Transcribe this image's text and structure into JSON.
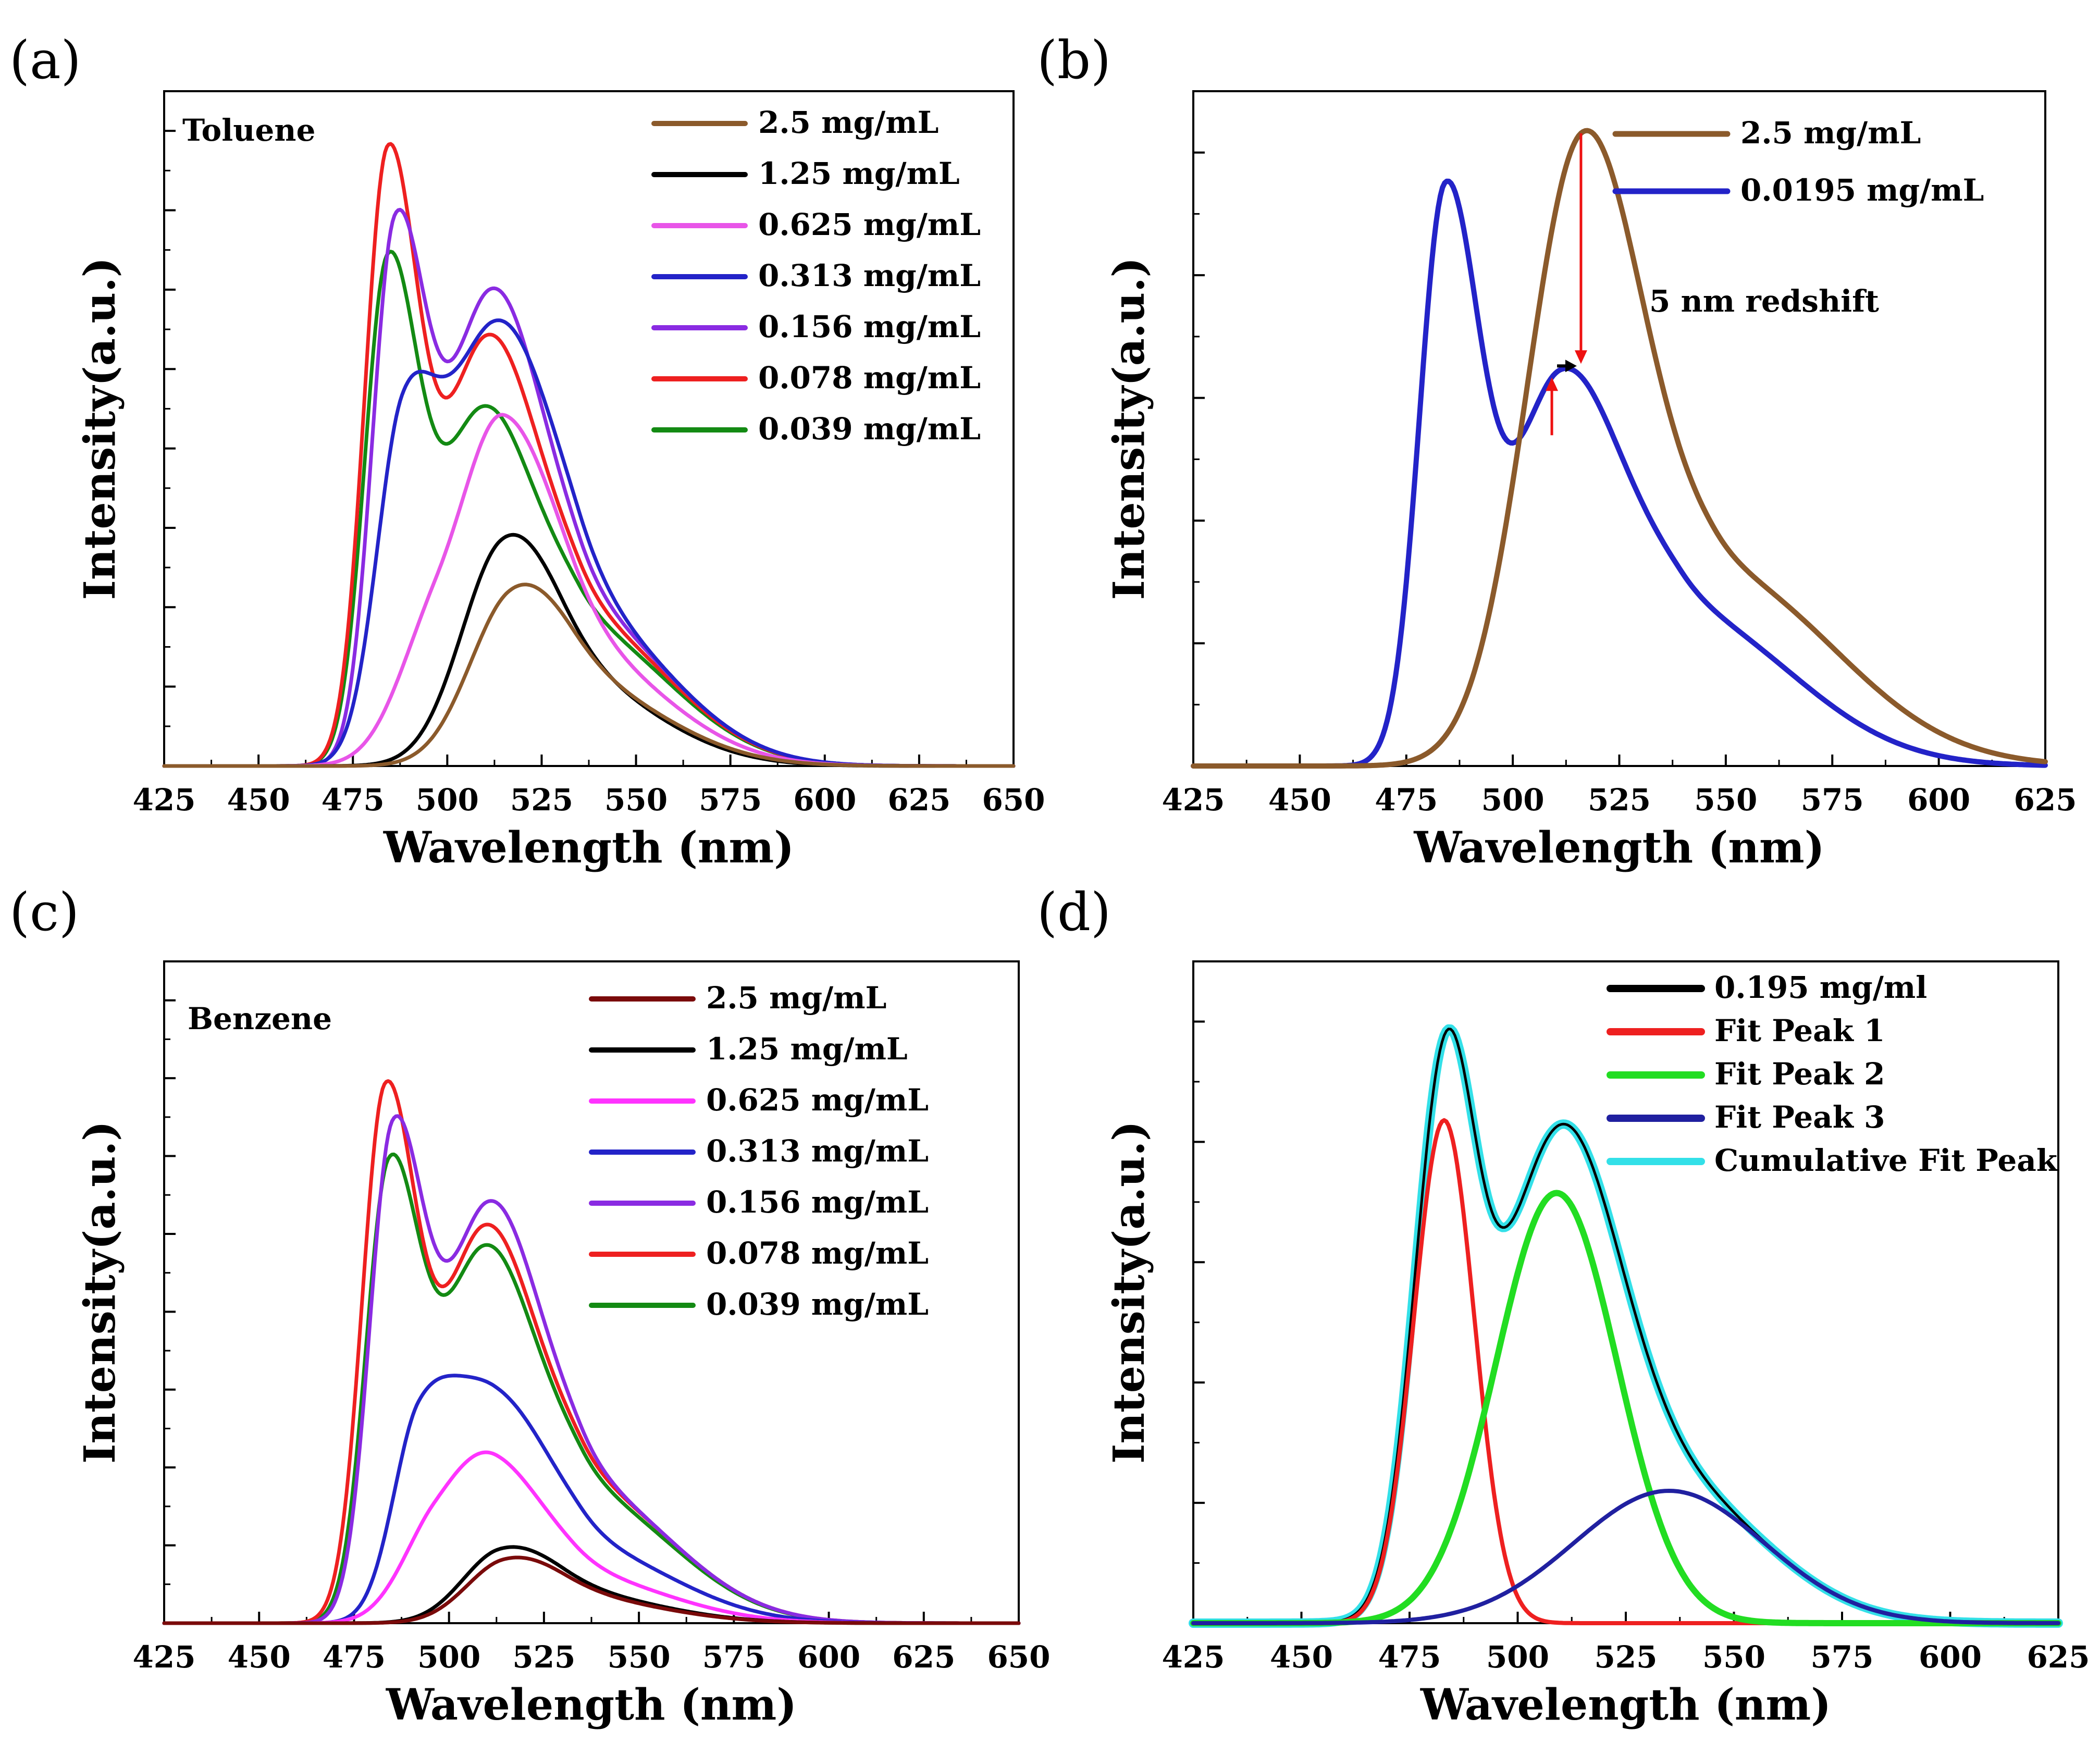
{
  "figure_labels": [
    "(a)",
    "(b)",
    "(c)",
    "(d)"
  ],
  "colors": {
    "brown": "#8b5a2b",
    "black": "#000000",
    "pink": "#e855e8",
    "blue": "#2323c8",
    "purple": "#8a2be2",
    "red": "#ee2020",
    "green": "#138a13",
    "darkred": "#7a0a0a",
    "brightpink": "#ff33ff",
    "fitgreen": "#22dd22",
    "navy": "#2020a0",
    "cyan": "#33e0e8",
    "arrow_red": "#ee1111"
  },
  "chart_data": [
    {
      "id": "a",
      "type": "line",
      "panel_label": "(a)",
      "title": "",
      "solvent_label": "Toluene",
      "xlabel": "Wavelength (nm)",
      "ylabel": "Intensity(a.u.)",
      "xlim": [
        425,
        650
      ],
      "ylim": [
        0,
        1.0
      ],
      "xticks": [
        425,
        450,
        475,
        500,
        525,
        550,
        575,
        600,
        625,
        650
      ],
      "legend_position": "top-right",
      "series": [
        {
          "name": "2.5 mg/mL",
          "color": "brown",
          "components": [
            {
              "c": 516,
              "a": 0.2,
              "wl": 11,
              "wr": 13
            },
            {
              "c": 533,
              "a": 0.12,
              "wl": 14,
              "wr": 24
            }
          ]
        },
        {
          "name": "1.25 mg/mL",
          "color": "black",
          "components": [
            {
              "c": 514,
              "a": 0.26,
              "wl": 11,
              "wr": 13
            },
            {
              "c": 530,
              "a": 0.13,
              "wl": 15,
              "wr": 24
            }
          ]
        },
        {
          "name": "0.625 mg/mL",
          "color": "pink",
          "components": [
            {
              "c": 497,
              "a": 0.2,
              "wl": 10,
              "wr": 14
            },
            {
              "c": 515,
              "a": 0.35,
              "wl": 10,
              "wr": 13
            },
            {
              "c": 533,
              "a": 0.17,
              "wl": 15,
              "wr": 24
            }
          ]
        },
        {
          "name": "0.313 mg/mL",
          "color": "blue",
          "components": [
            {
              "c": 488,
              "a": 0.44,
              "wl": 7,
              "wr": 9
            },
            {
              "c": 512,
              "a": 0.6,
              "wl": 13,
              "wr": 14
            },
            {
              "c": 535,
              "a": 0.22,
              "wl": 13,
              "wr": 24
            }
          ]
        },
        {
          "name": "0.156 mg/mL",
          "color": "purple",
          "components": [
            {
              "c": 486,
              "a": 0.74,
              "wl": 6,
              "wr": 8
            },
            {
              "c": 511,
              "a": 0.66,
              "wl": 12,
              "wr": 13
            },
            {
              "c": 535,
              "a": 0.22,
              "wl": 13,
              "wr": 24
            }
          ]
        },
        {
          "name": "0.078 mg/mL",
          "color": "red",
          "components": [
            {
              "c": 484,
              "a": 0.86,
              "wl": 6,
              "wr": 8
            },
            {
              "c": 510,
              "a": 0.6,
              "wl": 12,
              "wr": 13
            },
            {
              "c": 535,
              "a": 0.21,
              "wl": 13,
              "wr": 24
            }
          ]
        },
        {
          "name": "0.039 mg/mL",
          "color": "green",
          "components": [
            {
              "c": 484,
              "a": 0.7,
              "wl": 6,
              "wr": 8
            },
            {
              "c": 509,
              "a": 0.5,
              "wl": 12,
              "wr": 13
            },
            {
              "c": 535,
              "a": 0.2,
              "wl": 13,
              "wr": 24
            }
          ]
        }
      ]
    },
    {
      "id": "b",
      "type": "line",
      "panel_label": "(b)",
      "title": "",
      "xlabel": "Wavelength (nm)",
      "ylabel": "Intensity(a.u.)",
      "xlim": [
        425,
        625
      ],
      "ylim": [
        0,
        1.0
      ],
      "xticks": [
        425,
        450,
        475,
        500,
        525,
        550,
        575,
        600,
        625
      ],
      "legend_position": "top-right",
      "annotation": "5 nm redshift",
      "annotation_points": {
        "peak_2_5": 516,
        "peak_0_0195": 511
      },
      "series": [
        {
          "name": "2.5 mg/mL",
          "color": "brown",
          "components": [
            {
              "c": 516,
              "a": 0.88,
              "wl": 13,
              "wr": 14
            },
            {
              "c": 548,
              "a": 0.28,
              "wl": 18,
              "wr": 28
            }
          ]
        },
        {
          "name": "0.0195 mg/mL",
          "color": "blue",
          "components": [
            {
              "c": 484,
              "a": 0.82,
              "wl": 6,
              "wr": 8
            },
            {
              "c": 511,
              "a": 0.55,
              "wl": 12,
              "wr": 14
            },
            {
              "c": 540,
              "a": 0.22,
              "wl": 15,
              "wr": 26
            }
          ]
        }
      ]
    },
    {
      "id": "c",
      "type": "line",
      "panel_label": "(c)",
      "title": "",
      "solvent_label": "Benzene",
      "xlabel": "Wavelength (nm)",
      "ylabel": "Intensity(a.u.)",
      "xlim": [
        425,
        650
      ],
      "ylim": [
        0,
        1.0
      ],
      "xticks": [
        425,
        450,
        475,
        500,
        525,
        550,
        575,
        600,
        625,
        650
      ],
      "legend_position": "top-right",
      "series": [
        {
          "name": "2.5 mg/mL",
          "color": "darkred",
          "components": [
            {
              "c": 514,
              "a": 0.075,
              "wl": 10,
              "wr": 13
            },
            {
              "c": 530,
              "a": 0.04,
              "wl": 14,
              "wr": 24
            }
          ]
        },
        {
          "name": "1.25 mg/mL",
          "color": "black",
          "components": [
            {
              "c": 513,
              "a": 0.09,
              "wl": 10,
              "wr": 13
            },
            {
              "c": 530,
              "a": 0.045,
              "wl": 14,
              "wr": 24
            }
          ]
        },
        {
          "name": "0.625 mg/mL",
          "color": "brightpink",
          "components": [
            {
              "c": 496,
              "a": 0.12,
              "wl": 9,
              "wr": 14
            },
            {
              "c": 512,
              "a": 0.17,
              "wl": 11,
              "wr": 13
            },
            {
              "c": 533,
              "a": 0.07,
              "wl": 14,
              "wr": 24
            }
          ]
        },
        {
          "name": "0.313 mg/mL",
          "color": "blue",
          "components": [
            {
              "c": 492,
              "a": 0.26,
              "wl": 7,
              "wr": 10
            },
            {
              "c": 512,
              "a": 0.3,
              "wl": 12,
              "wr": 13
            },
            {
              "c": 535,
              "a": 0.11,
              "wl": 13,
              "wr": 24
            }
          ]
        },
        {
          "name": "0.156 mg/mL",
          "color": "purple",
          "components": [
            {
              "c": 485,
              "a": 0.69,
              "wl": 6,
              "wr": 8
            },
            {
              "c": 510,
              "a": 0.6,
              "wl": 12,
              "wr": 13
            },
            {
              "c": 535,
              "a": 0.2,
              "wl": 13,
              "wr": 24
            }
          ]
        },
        {
          "name": "0.078 mg/mL",
          "color": "red",
          "components": [
            {
              "c": 483,
              "a": 0.76,
              "wl": 6,
              "wr": 8
            },
            {
              "c": 509,
              "a": 0.57,
              "wl": 12,
              "wr": 13
            },
            {
              "c": 535,
              "a": 0.2,
              "wl": 13,
              "wr": 24
            }
          ]
        },
        {
          "name": "0.039 mg/mL",
          "color": "green",
          "components": [
            {
              "c": 484,
              "a": 0.64,
              "wl": 6,
              "wr": 8
            },
            {
              "c": 509,
              "a": 0.54,
              "wl": 12,
              "wr": 13
            },
            {
              "c": 535,
              "a": 0.19,
              "wl": 13,
              "wr": 24
            }
          ]
        }
      ]
    },
    {
      "id": "d",
      "type": "line",
      "panel_label": "(d)",
      "title": "",
      "xlabel": "Wavelength (nm)",
      "ylabel": "Intensity(a.u.)",
      "xlim": [
        425,
        625
      ],
      "ylim": [
        0,
        1.0
      ],
      "xticks": [
        425,
        450,
        475,
        500,
        525,
        550,
        575,
        600,
        625
      ],
      "legend_position": "top-right",
      "series": [
        {
          "name": "0.195 mg/ml",
          "color": "black",
          "components": [
            {
              "c": 483,
              "a": 0.76,
              "wl": 7,
              "wr": 7
            },
            {
              "c": 509,
              "a": 0.65,
              "wl": 14,
              "wr": 14
            },
            {
              "c": 535,
              "a": 0.2,
              "wl": 22,
              "wr": 22
            }
          ]
        },
        {
          "name": "Fit Peak 1",
          "color": "red",
          "components": [
            {
              "c": 483,
              "a": 0.76,
              "wl": 7,
              "wr": 7
            }
          ]
        },
        {
          "name": "Fit Peak 2",
          "color": "fitgreen",
          "components": [
            {
              "c": 509,
              "a": 0.65,
              "wl": 14,
              "wr": 14
            }
          ]
        },
        {
          "name": "Fit Peak 3",
          "color": "navy",
          "components": [
            {
              "c": 535,
              "a": 0.2,
              "wl": 22,
              "wr": 22
            }
          ]
        },
        {
          "name": "Cumulative Fit Peak",
          "color": "cyan",
          "components": [
            {
              "c": 483,
              "a": 0.76,
              "wl": 7,
              "wr": 7
            },
            {
              "c": 509,
              "a": 0.65,
              "wl": 14,
              "wr": 14
            },
            {
              "c": 535,
              "a": 0.2,
              "wl": 22,
              "wr": 22
            }
          ]
        }
      ]
    }
  ]
}
